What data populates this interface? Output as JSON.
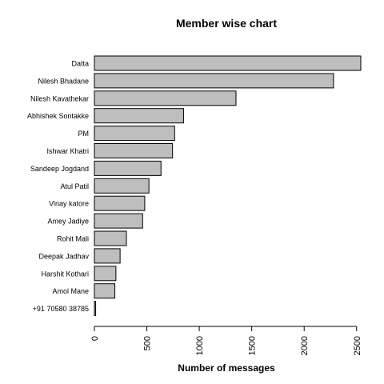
{
  "chart_data": {
    "type": "bar",
    "orientation": "horizontal",
    "title": "Member wise chart",
    "xlabel": "Number of messages",
    "ylabel": "",
    "categories": [
      "Datta",
      "Nilesh Bhadane",
      "Nilesh Kavathekar",
      "Abhishek Sontakke",
      "PM",
      "Ishwar Khatri",
      "Sandeep Jogdand",
      "Atul Patil",
      "Vinay katore",
      "Amey Jadiye",
      "Rohit Mali",
      "Deepak Jadhav",
      "Harshit Kothari",
      "Amol Mane",
      "+91 70580 38785"
    ],
    "values": [
      2540,
      2280,
      1350,
      850,
      765,
      745,
      635,
      520,
      480,
      460,
      305,
      245,
      205,
      195,
      12
    ],
    "xlim": [
      0,
      2540
    ],
    "xticks": [
      "0",
      "500",
      "1000",
      "1500",
      "2000",
      "2500"
    ],
    "xtick_values": [
      0,
      500,
      1000,
      1500,
      2000,
      2500
    ],
    "bar_color": "#bebebe",
    "grid": false,
    "legend": "none"
  }
}
